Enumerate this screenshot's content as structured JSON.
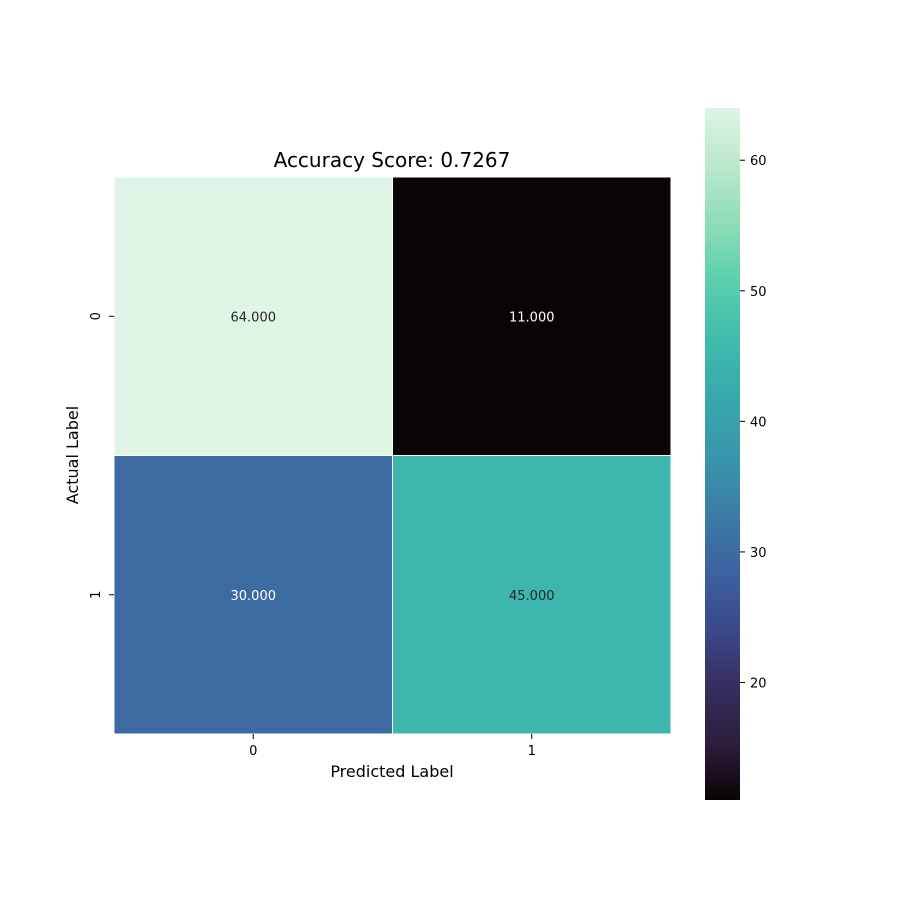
{
  "chart_data": {
    "type": "heatmap",
    "title": "Accuracy Score: 0.7267",
    "xlabel": "Predicted Label",
    "ylabel": "Actual Label",
    "x_categories": [
      "0",
      "1"
    ],
    "y_categories": [
      "0",
      "1"
    ],
    "values": [
      [
        64,
        11
      ],
      [
        30,
        45
      ]
    ],
    "cell_labels": [
      [
        "64.000",
        "11.000"
      ],
      [
        "30.000",
        "45.000"
      ]
    ],
    "colorbar": {
      "range": [
        11,
        64
      ],
      "ticks": [
        "20",
        "30",
        "40",
        "50",
        "60"
      ],
      "colors": [
        "#0b0405",
        "#2d1e3e",
        "#382f61",
        "#3a4a8c",
        "#3d63a0",
        "#3b7ea6",
        "#3897ab",
        "#37a8ac",
        "#40bcad",
        "#5ccfad",
        "#8dddb7",
        "#bbe8cc",
        "#def5e5"
      ]
    },
    "grid": false,
    "legend": "colorbar-right"
  }
}
